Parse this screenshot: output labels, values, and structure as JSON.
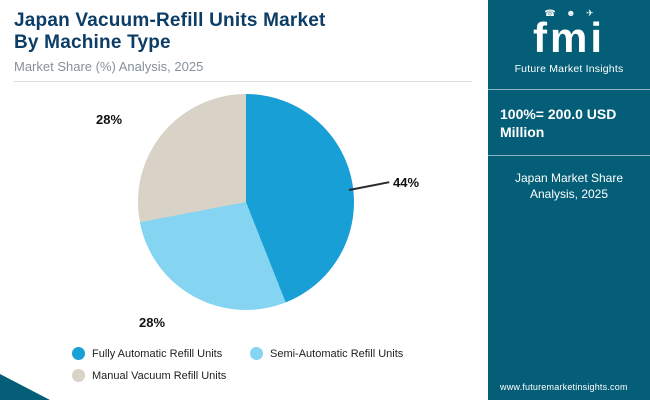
{
  "header": {
    "title_line1": "Japan Vacuum-Refill Units Market",
    "title_line2": "By Machine Type",
    "subtitle": "Market Share (%) Analysis, 2025"
  },
  "chart_data": {
    "type": "pie",
    "title": "Japan Vacuum-Refill Units Market By Machine Type",
    "subtitle": "Market Share (%) Analysis, 2025",
    "unit": "%",
    "start_angle_deg": 0,
    "direction": "clockwise",
    "legend_position": "bottom-left",
    "slices": [
      {
        "label": "Fully Automatic Refill Units",
        "value": 44,
        "pct": "44%",
        "color": "#189fd6"
      },
      {
        "label": "Semi-Automatic Refill Units",
        "value": 28,
        "pct": "28%",
        "color": "#85d4f2"
      },
      {
        "label": "Manual Vacuum Refill Units",
        "value": 28,
        "pct": "28%",
        "color": "#d9d2c6"
      }
    ]
  },
  "sidebar": {
    "bg": "#045e78",
    "logo_text": "fmi",
    "logo_icons": [
      {
        "name": "phone-icon",
        "glyph": "☎"
      },
      {
        "name": "people-icon",
        "glyph": "☻"
      },
      {
        "name": "plane-icon",
        "glyph": "✈"
      }
    ],
    "brand": "Future Market Insights",
    "stat": "100%= 200.0 USD Million",
    "caption_line1": "Japan Market Share",
    "caption_line2": "Analysis, 2025",
    "website": "www.futuremarketinsights.com"
  }
}
